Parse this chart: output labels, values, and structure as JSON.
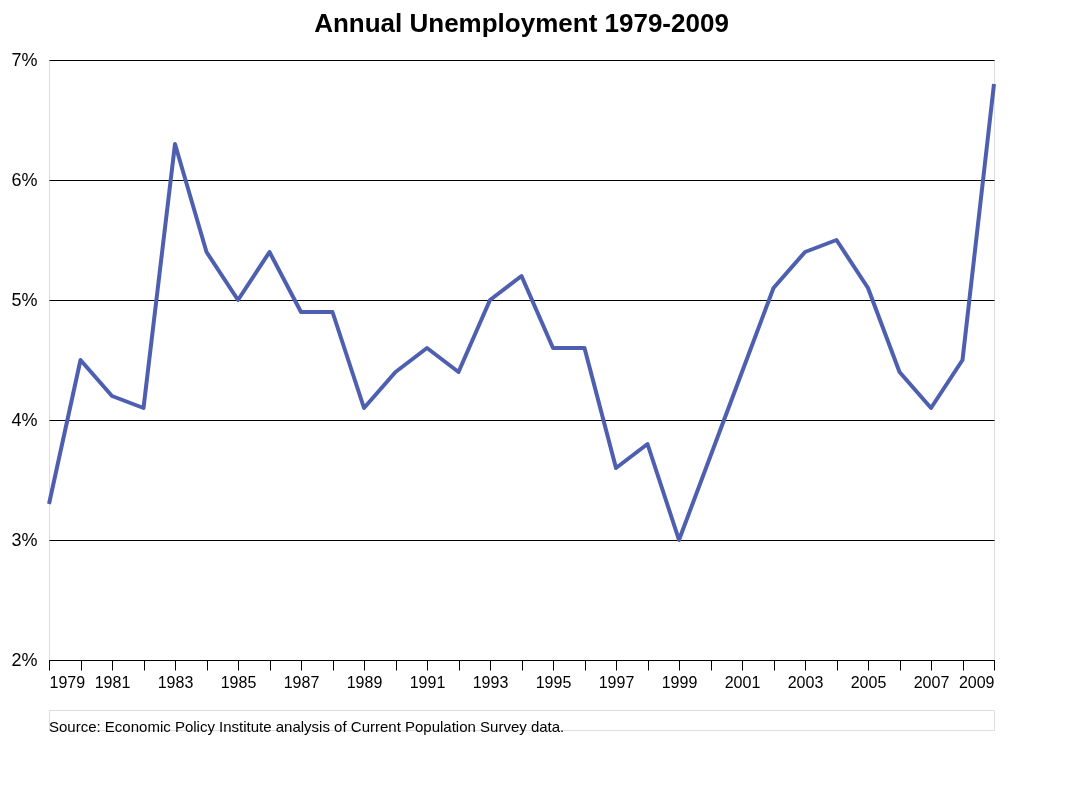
{
  "chart_data": {
    "type": "line",
    "title": "Annual Unemployment 1979-2009",
    "x": [
      1979,
      1980,
      1981,
      1982,
      1983,
      1984,
      1985,
      1986,
      1987,
      1988,
      1989,
      1990,
      1991,
      1992,
      1993,
      1994,
      1995,
      1996,
      1997,
      1998,
      1999,
      2000,
      2001,
      2002,
      2003,
      2004,
      2005,
      2006,
      2007,
      2008,
      2009
    ],
    "series": [
      {
        "color": "#4f5fb0",
        "values": [
          3.3,
          4.5,
          4.2,
          4.1,
          6.3,
          5.4,
          5.0,
          5.4,
          4.9,
          4.9,
          4.1,
          4.4,
          4.6,
          4.4,
          5.0,
          5.2,
          4.6,
          4.6,
          3.6,
          3.8,
          3.0,
          3.7,
          4.4,
          5.1,
          5.4,
          5.5,
          5.1,
          4.4,
          4.1,
          4.5,
          6.8
        ]
      }
    ],
    "xlim": [
      1979,
      2009
    ],
    "xticks": [
      1979,
      {
        "value": 1980,
        "label": null
      },
      1981,
      {
        "value": 1982,
        "label": null
      },
      1983,
      {
        "value": 1984,
        "label": null
      },
      1985,
      {
        "value": 1986,
        "label": null
      },
      1987,
      {
        "value": 1988,
        "label": null
      },
      1989,
      {
        "value": 1990,
        "label": null
      },
      1991,
      {
        "value": 1992,
        "label": null
      },
      1993,
      {
        "value": 1994,
        "label": null
      },
      1995,
      {
        "value": 1996,
        "label": null
      },
      1997,
      {
        "value": 1998,
        "label": null
      },
      1999,
      {
        "value": 2000,
        "label": null
      },
      2001,
      {
        "value": 2002,
        "label": null
      },
      2003,
      {
        "value": 2004,
        "label": null
      },
      2005,
      {
        "value": 2006,
        "label": null
      },
      2007,
      {
        "value": 2008,
        "label": null
      },
      2009
    ],
    "ylim": [
      2,
      7
    ],
    "yticks": [
      {
        "value": 2,
        "label": "2%"
      },
      {
        "value": 3,
        "label": "3%"
      },
      {
        "value": 4,
        "label": "4%"
      },
      {
        "value": 5,
        "label": "5%"
      },
      {
        "value": 6,
        "label": "6%"
      },
      {
        "value": 7,
        "label": "7%"
      }
    ],
    "grid": "y",
    "marker": "none",
    "line_style": "solid",
    "legend": false,
    "annotations": [
      "Source: Economic Policy Institute analysis of Current Population Survey data."
    ]
  }
}
